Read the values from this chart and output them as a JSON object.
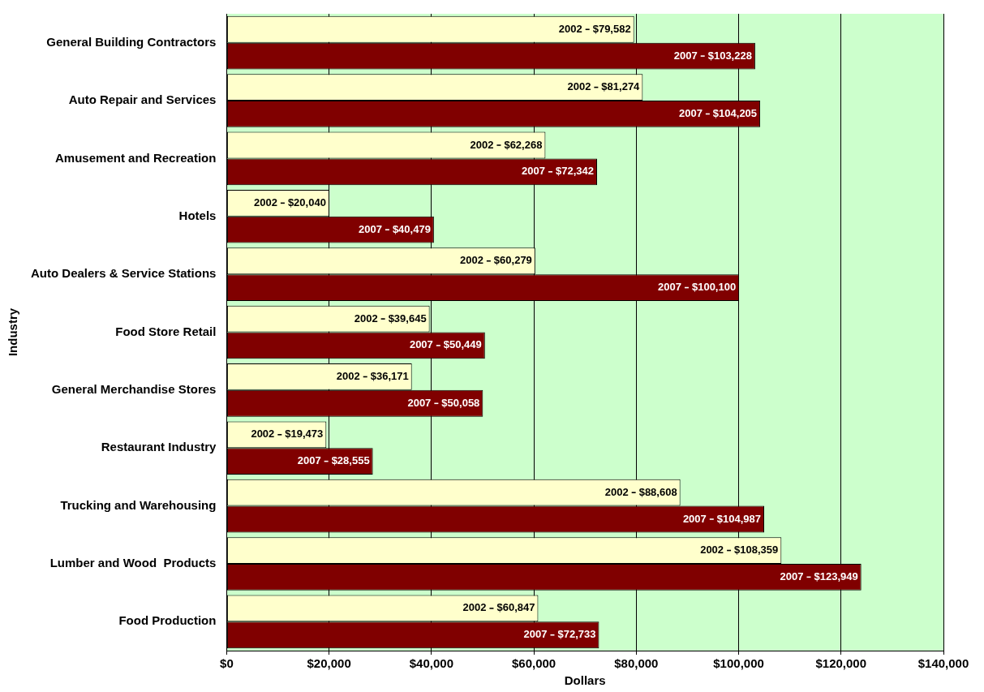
{
  "chart_data": {
    "type": "bar",
    "orientation": "horizontal",
    "xlabel": "Dollars",
    "ylabel": "Industry",
    "categories": [
      "General Building Contractors",
      "Auto Repair and Services",
      "Amusement and Recreation",
      "Hotels",
      "Auto Dealers & Service Stations",
      "Food Store Retail",
      "General Merchandise Stores",
      "Restaurant Industry",
      "Trucking and Warehousing",
      "Lumber and Wood  Products",
      "Food Production"
    ],
    "series": [
      {
        "name": "2002",
        "color": "#ffffcc",
        "values": [
          79582,
          81274,
          62268,
          20040,
          60279,
          39645,
          36171,
          19473,
          88608,
          108359,
          60847
        ],
        "value_labels": [
          "$79,582",
          "$81,274",
          "$62,268",
          "$20,040",
          "$60,279",
          "$39,645",
          "$36,171",
          "$19,473",
          "$88,608",
          "$108,359",
          "$60,847"
        ]
      },
      {
        "name": "2007",
        "color": "#800000",
        "values": [
          103228,
          104205,
          72342,
          40479,
          100100,
          50449,
          50058,
          28555,
          104987,
          123949,
          72733
        ],
        "value_labels": [
          "$103,228",
          "$104,205",
          "$72,342",
          "$40,479",
          "$100,100",
          "$50,449",
          "$50,058",
          "$28,555",
          "$104,987",
          "$123,949",
          "$72,733"
        ]
      }
    ],
    "xlim": [
      0,
      140000
    ],
    "xticks": [
      {
        "value": 0,
        "label": "$0"
      },
      {
        "value": 20000,
        "label": "$20,000"
      },
      {
        "value": 40000,
        "label": "$40,000"
      },
      {
        "value": 60000,
        "label": "$60,000"
      },
      {
        "value": 80000,
        "label": "$80,000"
      },
      {
        "value": 100000,
        "label": "$100,000"
      },
      {
        "value": 120000,
        "label": "$120,000"
      },
      {
        "value": 140000,
        "label": "$140,000"
      }
    ],
    "grid": "x",
    "legend": false
  }
}
